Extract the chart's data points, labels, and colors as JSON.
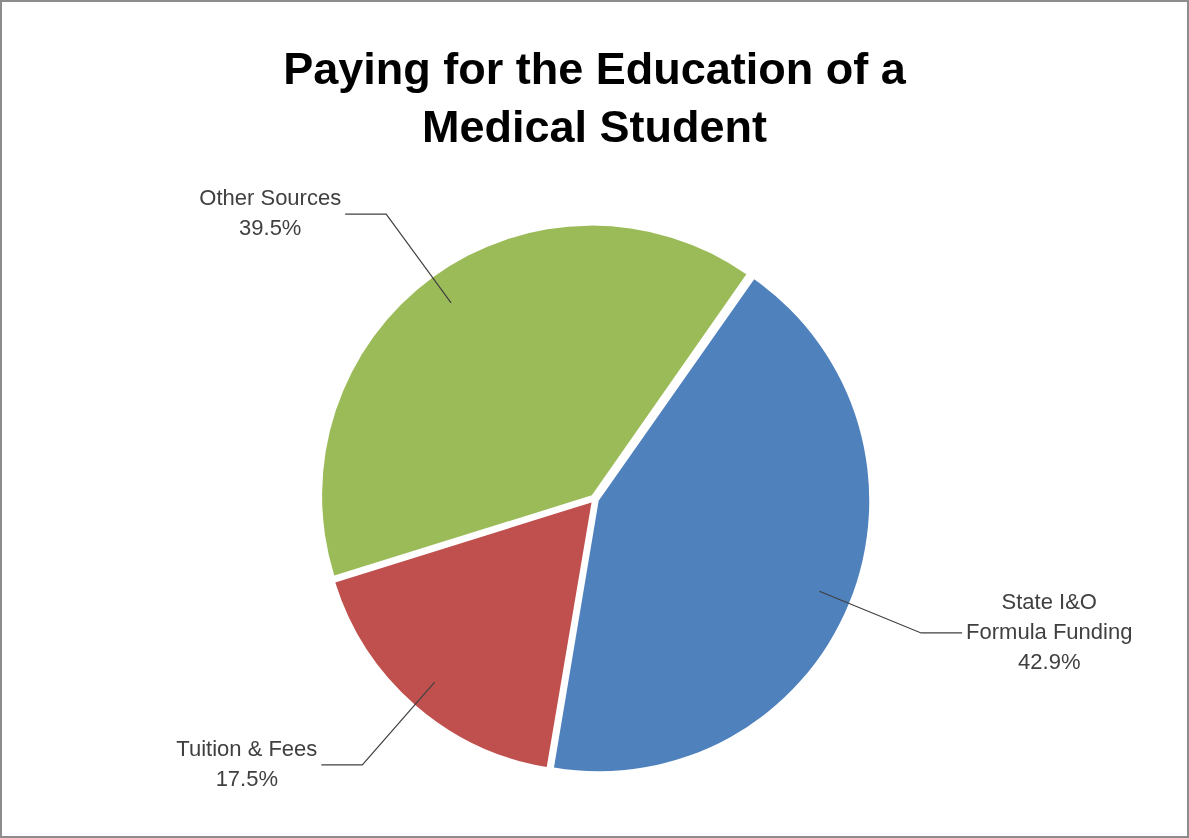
{
  "chart_data": {
    "type": "pie",
    "title": "Paying for the Education of a Medical Student",
    "categories": [
      "State I&O Formula Funding",
      "Tuition & Fees",
      "Other Sources"
    ],
    "values": [
      42.9,
      17.5,
      39.5
    ],
    "colors": [
      "#4f81bd",
      "#c0504d",
      "#9bbb59"
    ],
    "value_labels": [
      "42.9%",
      "17.5%",
      "39.5%"
    ],
    "legend": false
  }
}
